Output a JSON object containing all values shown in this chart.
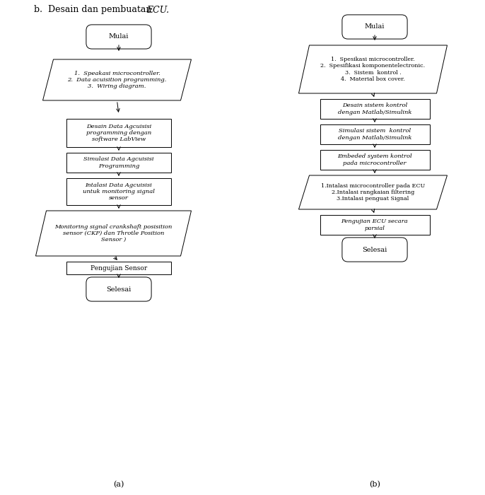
{
  "fig_width": 6.86,
  "fig_height": 7.0,
  "bg_color": "#ffffff",
  "title": "b.  Desain dan pembuatan ",
  "title_italic": "ECU.",
  "label_a": "(a)",
  "label_b": "(b)",
  "flowchart_a": {
    "mulai": "Mulai",
    "para1_text": "1.  Speakasi microcontroller.\n2.  Data acuisition programming.\n3.  Wiring diagram.",
    "box1": "Desain Data Agcuisisi\nprogramming dengan\nsoftware LabView",
    "box2": "Simulasi Data Agcuisisi\nProgramming",
    "box3": "Intalasi Data Agcuisisi\nuntuk monitoring signal\nsensor",
    "para2_text": "Monitoring signal crankshaft posisition\nsensor (CKP) dan Throtle Position\nSensor )",
    "box4": "Pengujian Sensor",
    "selesai": "Selesai"
  },
  "flowchart_b": {
    "mulai": "Mulai",
    "para1_text": "1.  Spesikasi microcontroller.\n2.  Spesifikasi komponentelectronic.\n3.  Sistem  kontrol .\n4.  Material box cover.",
    "box1": "Desain sistem kontrol\ndengan Matlab/Simulink",
    "box2": "Simulasi sistem  kontrol\ndengan Matlab/Simulink",
    "box3": "Embeded system kontrol\npada microcontroller",
    "para2_text": "1.Intalasi microcontroller pada ECU\n2.Intalasi rangkaian filtering\n3.Intalasi penguat Signal",
    "box4": "Pengujian ECU secara\nparsial",
    "selesai": "Selesai"
  }
}
